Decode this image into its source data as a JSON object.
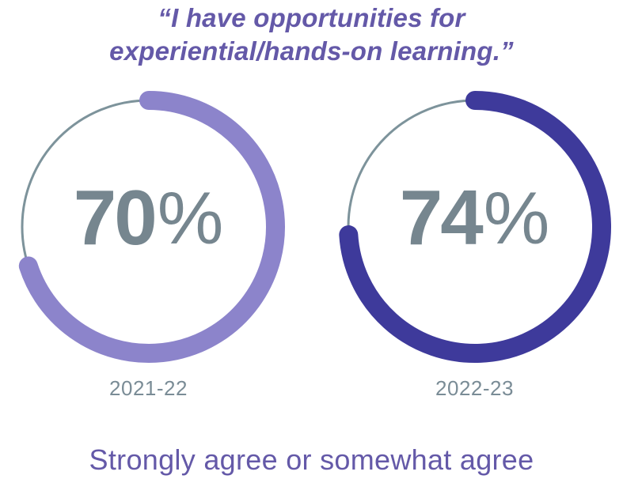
{
  "title": "“I have opportunities for experiential/hands-on learning.”",
  "caption": "Strongly agree or somewhat agree",
  "colors": {
    "title_purple": "#6459A8",
    "caption_purple": "#6459A8",
    "value_slate": "#76868F",
    "year_label_slate": "#7A8C96",
    "track_gray": "#7D939B",
    "arc_2021_light_purple": "#8C84CB",
    "arc_2022_dark_indigo": "#3E3A9B"
  },
  "chart_data": {
    "type": "donut",
    "title": "“I have opportunities for experiential/hands-on learning.”",
    "caption": "Strongly agree or somewhat agree",
    "unit": "%",
    "arc_start": "top",
    "direction": "clockwise",
    "track_color": "#7D939B",
    "value_color": "#76868F",
    "label_color": "#7A8C96",
    "donuts": [
      {
        "label": "2021-22",
        "value": 70,
        "value_text": "70",
        "unit": "%",
        "arc_color": "#8C84CB"
      },
      {
        "label": "2022-23",
        "value": 74,
        "value_text": "74",
        "unit": "%",
        "arc_color": "#3E3A9B"
      }
    ]
  }
}
